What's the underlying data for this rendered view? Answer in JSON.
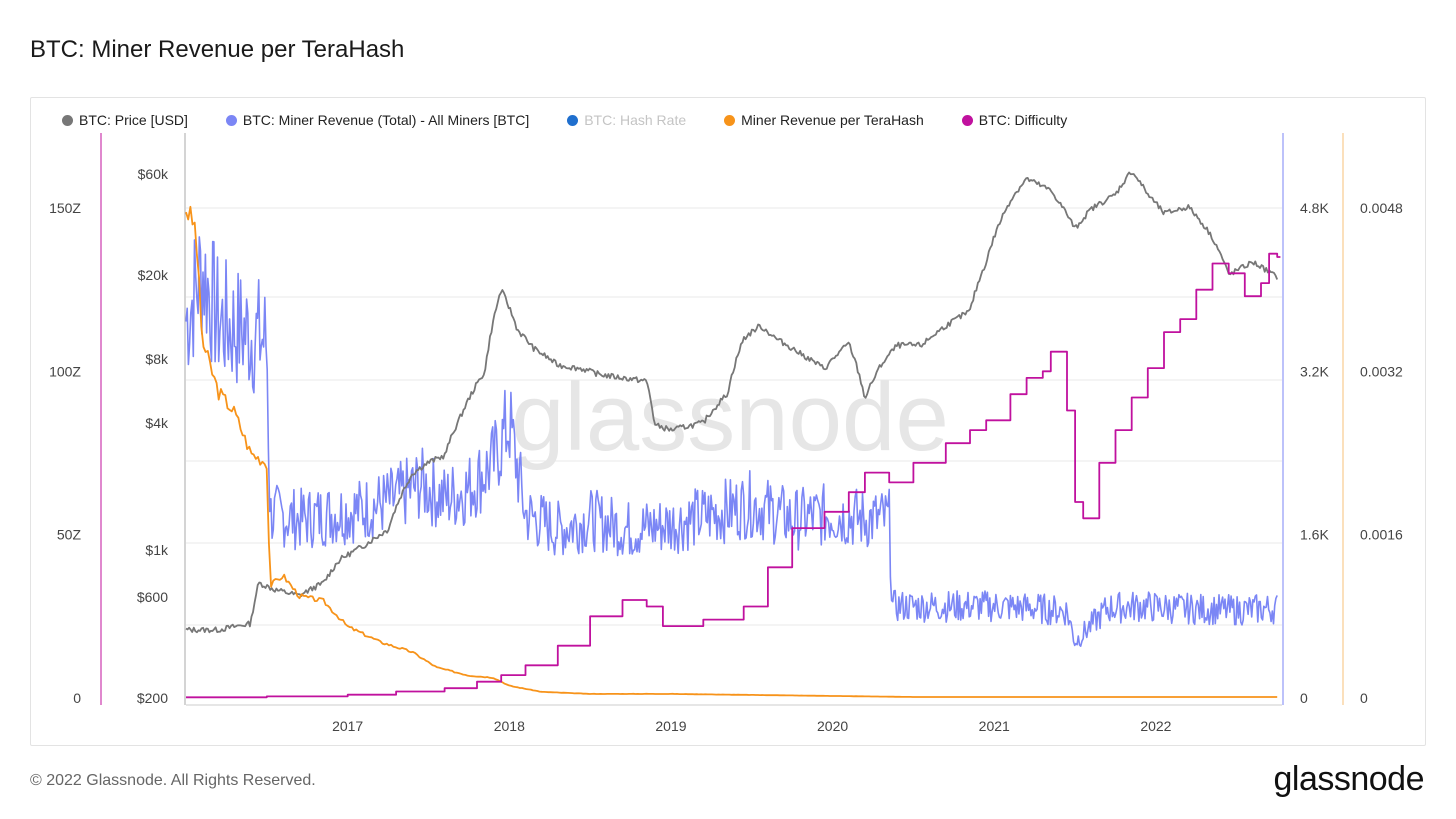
{
  "title": "BTC: Miner Revenue per TeraHash",
  "footer": {
    "copyright": "© 2022 Glassnode. All Rights Reserved.",
    "brand": "glassnode"
  },
  "watermark": "glassnode",
  "legend": [
    {
      "label": "BTC: Price [USD]",
      "color": "#777777",
      "dim": false
    },
    {
      "label": "BTC: Miner Revenue (Total) - All Miners [BTC]",
      "color": "#7b86f5",
      "dim": false
    },
    {
      "label": "BTC: Hash Rate",
      "color": "#1f6fce",
      "dim": true
    },
    {
      "label": "Miner Revenue per TeraHash",
      "color": "#f7931a",
      "dim": false
    },
    {
      "label": "BTC: Difficulty",
      "color": "#c0119e",
      "dim": false
    }
  ],
  "chart_data": {
    "type": "line",
    "x_range": [
      "2016-01",
      "2022-10"
    ],
    "x_ticks": [
      "2017",
      "2018",
      "2019",
      "2020",
      "2021",
      "2022"
    ],
    "axes": {
      "difficulty": {
        "ticks": [
          "0",
          "50Z",
          "100Z",
          "150Z"
        ],
        "range": [
          0,
          175
        ]
      },
      "price": {
        "scale": "log",
        "ticks": [
          "$200",
          "$600",
          "$1k",
          "$4k",
          "$8k",
          "$20k",
          "$60k"
        ],
        "range": [
          200,
          70000
        ]
      },
      "revenue": {
        "ticks": [
          "0",
          "1.6K",
          "3.2K",
          "4.8K"
        ],
        "range": [
          0,
          5600
        ]
      },
      "per_terahash": {
        "ticks": [
          "0",
          "0.0016",
          "0.0032",
          "0.0048"
        ],
        "range": [
          0,
          0.0056
        ]
      }
    },
    "series": [
      {
        "name": "BTC: Price [USD]",
        "axis": "price",
        "color": "#777777",
        "points": [
          [
            2016.0,
            420
          ],
          [
            2016.2,
            420
          ],
          [
            2016.4,
            450
          ],
          [
            2016.45,
            700
          ],
          [
            2016.55,
            650
          ],
          [
            2016.7,
            610
          ],
          [
            2016.85,
            700
          ],
          [
            2016.95,
            900
          ],
          [
            2017.1,
            1050
          ],
          [
            2017.25,
            1250
          ],
          [
            2017.4,
            2300
          ],
          [
            2017.5,
            2600
          ],
          [
            2017.6,
            2800
          ],
          [
            2017.7,
            4300
          ],
          [
            2017.85,
            7000
          ],
          [
            2017.95,
            17000
          ],
          [
            2018.05,
            11000
          ],
          [
            2018.15,
            9000
          ],
          [
            2018.3,
            7500
          ],
          [
            2018.45,
            7200
          ],
          [
            2018.55,
            6800
          ],
          [
            2018.65,
            6600
          ],
          [
            2018.85,
            6300
          ],
          [
            2018.9,
            3900
          ],
          [
            2019.0,
            3700
          ],
          [
            2019.2,
            4000
          ],
          [
            2019.35,
            5500
          ],
          [
            2019.45,
            10000
          ],
          [
            2019.55,
            11500
          ],
          [
            2019.65,
            10000
          ],
          [
            2019.8,
            8500
          ],
          [
            2019.95,
            7200
          ],
          [
            2020.1,
            9500
          ],
          [
            2020.2,
            5200
          ],
          [
            2020.3,
            7500
          ],
          [
            2020.4,
            9300
          ],
          [
            2020.55,
            9300
          ],
          [
            2020.7,
            11500
          ],
          [
            2020.85,
            13500
          ],
          [
            2020.95,
            23000
          ],
          [
            2021.1,
            45000
          ],
          [
            2021.2,
            57000
          ],
          [
            2021.35,
            50000
          ],
          [
            2021.5,
            33000
          ],
          [
            2021.6,
            41000
          ],
          [
            2021.75,
            48000
          ],
          [
            2021.85,
            62000
          ],
          [
            2021.95,
            48000
          ],
          [
            2022.05,
            39000
          ],
          [
            2022.2,
            42000
          ],
          [
            2022.35,
            30000
          ],
          [
            2022.45,
            20000
          ],
          [
            2022.6,
            23000
          ],
          [
            2022.75,
            19500
          ]
        ]
      },
      {
        "name": "BTC: Miner Revenue (Total) - All Miners [BTC]",
        "axis": "revenue",
        "color": "#7b86f5",
        "points": [
          [
            2016.0,
            3700
          ],
          [
            2016.1,
            4200
          ],
          [
            2016.2,
            3700
          ],
          [
            2016.35,
            3600
          ],
          [
            2016.5,
            3500
          ],
          [
            2016.52,
            1800
          ],
          [
            2016.7,
            1750
          ],
          [
            2016.9,
            1800
          ],
          [
            2017.1,
            1850
          ],
          [
            2017.3,
            1950
          ],
          [
            2017.45,
            2100
          ],
          [
            2017.6,
            1950
          ],
          [
            2017.75,
            2050
          ],
          [
            2017.9,
            2300
          ],
          [
            2018.0,
            2700
          ],
          [
            2018.1,
            1800
          ],
          [
            2018.3,
            1650
          ],
          [
            2018.5,
            1750
          ],
          [
            2018.75,
            1650
          ],
          [
            2019.0,
            1700
          ],
          [
            2019.25,
            1800
          ],
          [
            2019.5,
            1900
          ],
          [
            2019.75,
            1750
          ],
          [
            2020.0,
            1800
          ],
          [
            2020.2,
            1750
          ],
          [
            2020.35,
            1750
          ],
          [
            2020.37,
            900
          ],
          [
            2020.6,
            900
          ],
          [
            2020.8,
            900
          ],
          [
            2021.0,
            900
          ],
          [
            2021.25,
            880
          ],
          [
            2021.45,
            850
          ],
          [
            2021.5,
            550
          ],
          [
            2021.7,
            880
          ],
          [
            2021.9,
            900
          ],
          [
            2022.1,
            880
          ],
          [
            2022.3,
            870
          ],
          [
            2022.5,
            860
          ],
          [
            2022.75,
            880
          ]
        ]
      },
      {
        "name": "Miner Revenue per TeraHash",
        "axis": "per_terahash",
        "color": "#f7931a",
        "points": [
          [
            2016.0,
            0.0048
          ],
          [
            2016.06,
            0.0046
          ],
          [
            2016.1,
            0.0035
          ],
          [
            2016.2,
            0.003
          ],
          [
            2016.3,
            0.0028
          ],
          [
            2016.4,
            0.0024
          ],
          [
            2016.5,
            0.0023
          ],
          [
            2016.52,
            0.0011
          ],
          [
            2016.6,
            0.0012
          ],
          [
            2016.7,
            0.001
          ],
          [
            2016.85,
            0.00095
          ],
          [
            2017.0,
            0.0007
          ],
          [
            2017.2,
            0.00055
          ],
          [
            2017.4,
            0.00045
          ],
          [
            2017.55,
            0.0003
          ],
          [
            2017.75,
            0.00022
          ],
          [
            2017.9,
            0.0002
          ],
          [
            2018.0,
            0.00012
          ],
          [
            2018.2,
            6e-05
          ],
          [
            2018.5,
            4e-05
          ],
          [
            2019.0,
            4e-05
          ],
          [
            2019.5,
            3e-05
          ],
          [
            2020.0,
            2e-05
          ],
          [
            2020.5,
            1e-05
          ],
          [
            2021.0,
            1e-05
          ],
          [
            2022.0,
            1e-05
          ],
          [
            2022.75,
            1e-05
          ]
        ]
      },
      {
        "name": "BTC: Difficulty",
        "axis": "difficulty",
        "color": "#c0119e",
        "points": [
          [
            2016.0,
            0.2
          ],
          [
            2016.5,
            0.5
          ],
          [
            2017.0,
            1.0
          ],
          [
            2017.3,
            2.0
          ],
          [
            2017.6,
            3.0
          ],
          [
            2017.8,
            5.0
          ],
          [
            2017.95,
            7.0
          ],
          [
            2018.1,
            10.0
          ],
          [
            2018.3,
            16.0
          ],
          [
            2018.5,
            25.0
          ],
          [
            2018.7,
            30.0
          ],
          [
            2018.85,
            28.0
          ],
          [
            2018.95,
            22.0
          ],
          [
            2019.2,
            24.0
          ],
          [
            2019.45,
            28.0
          ],
          [
            2019.6,
            40.0
          ],
          [
            2019.75,
            52.0
          ],
          [
            2019.95,
            57.0
          ],
          [
            2020.1,
            63.0
          ],
          [
            2020.2,
            69.0
          ],
          [
            2020.35,
            66.0
          ],
          [
            2020.5,
            72.0
          ],
          [
            2020.7,
            78.0
          ],
          [
            2020.85,
            82.0
          ],
          [
            2020.95,
            85.0
          ],
          [
            2021.1,
            93.0
          ],
          [
            2021.2,
            98.0
          ],
          [
            2021.3,
            100.0
          ],
          [
            2021.35,
            106.0
          ],
          [
            2021.45,
            88.0
          ],
          [
            2021.5,
            60.0
          ],
          [
            2021.55,
            55.0
          ],
          [
            2021.65,
            72.0
          ],
          [
            2021.75,
            82.0
          ],
          [
            2021.85,
            92.0
          ],
          [
            2021.95,
            101.0
          ],
          [
            2022.05,
            112.0
          ],
          [
            2022.15,
            116.0
          ],
          [
            2022.25,
            125.0
          ],
          [
            2022.35,
            133.0
          ],
          [
            2022.45,
            130.0
          ],
          [
            2022.55,
            123.0
          ],
          [
            2022.65,
            127.0
          ],
          [
            2022.7,
            136.0
          ],
          [
            2022.75,
            135.0
          ]
        ]
      }
    ]
  }
}
